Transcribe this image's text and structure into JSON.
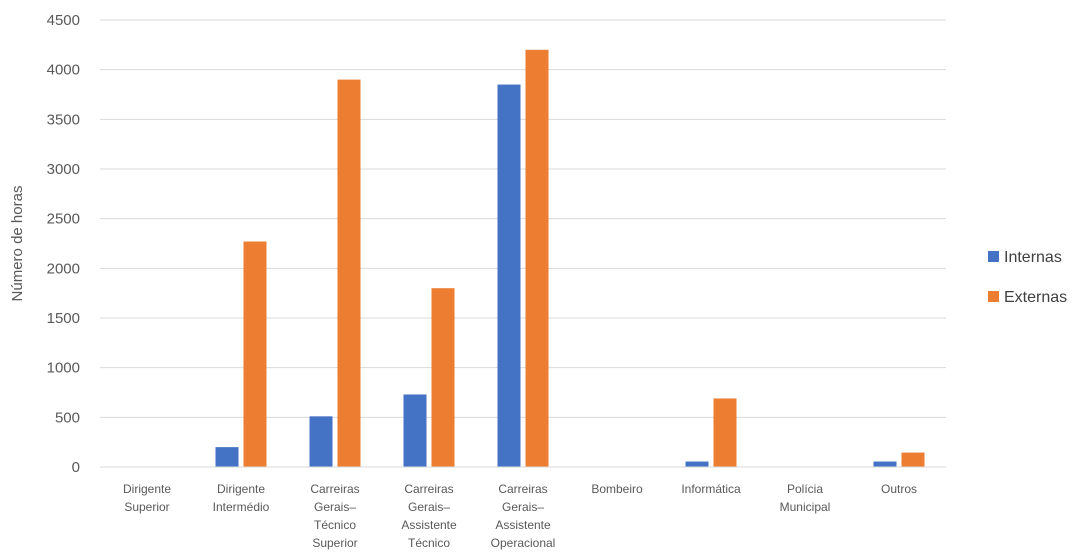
{
  "chart_data": {
    "type": "bar",
    "ylabel": "Número de horas",
    "ylim": [
      0,
      4500
    ],
    "yticks": [
      0,
      500,
      1000,
      1500,
      2000,
      2500,
      3000,
      3500,
      4000,
      4500
    ],
    "grid": true,
    "legend_position": "right",
    "categories": [
      [
        "Dirigente",
        "Superior"
      ],
      [
        "Dirigente",
        "Intermédio"
      ],
      [
        "Carreiras",
        "Gerais–",
        "Técnico",
        "Superior"
      ],
      [
        "Carreiras",
        "Gerais–",
        "Assistente",
        "Técnico"
      ],
      [
        "Carreiras",
        "Gerais–",
        "Assistente",
        "Operacional"
      ],
      [
        "Bombeiro"
      ],
      [
        "Informática"
      ],
      [
        "Polícia",
        "Municipal"
      ],
      [
        "Outros"
      ]
    ],
    "series": [
      {
        "name": "Internas",
        "color": "#4472C4",
        "values": [
          0,
          200,
          510,
          730,
          3850,
          0,
          55,
          0,
          55
        ]
      },
      {
        "name": "Externas",
        "color": "#ED7D31",
        "values": [
          0,
          2270,
          3900,
          1800,
          4200,
          0,
          690,
          0,
          145
        ]
      }
    ]
  }
}
